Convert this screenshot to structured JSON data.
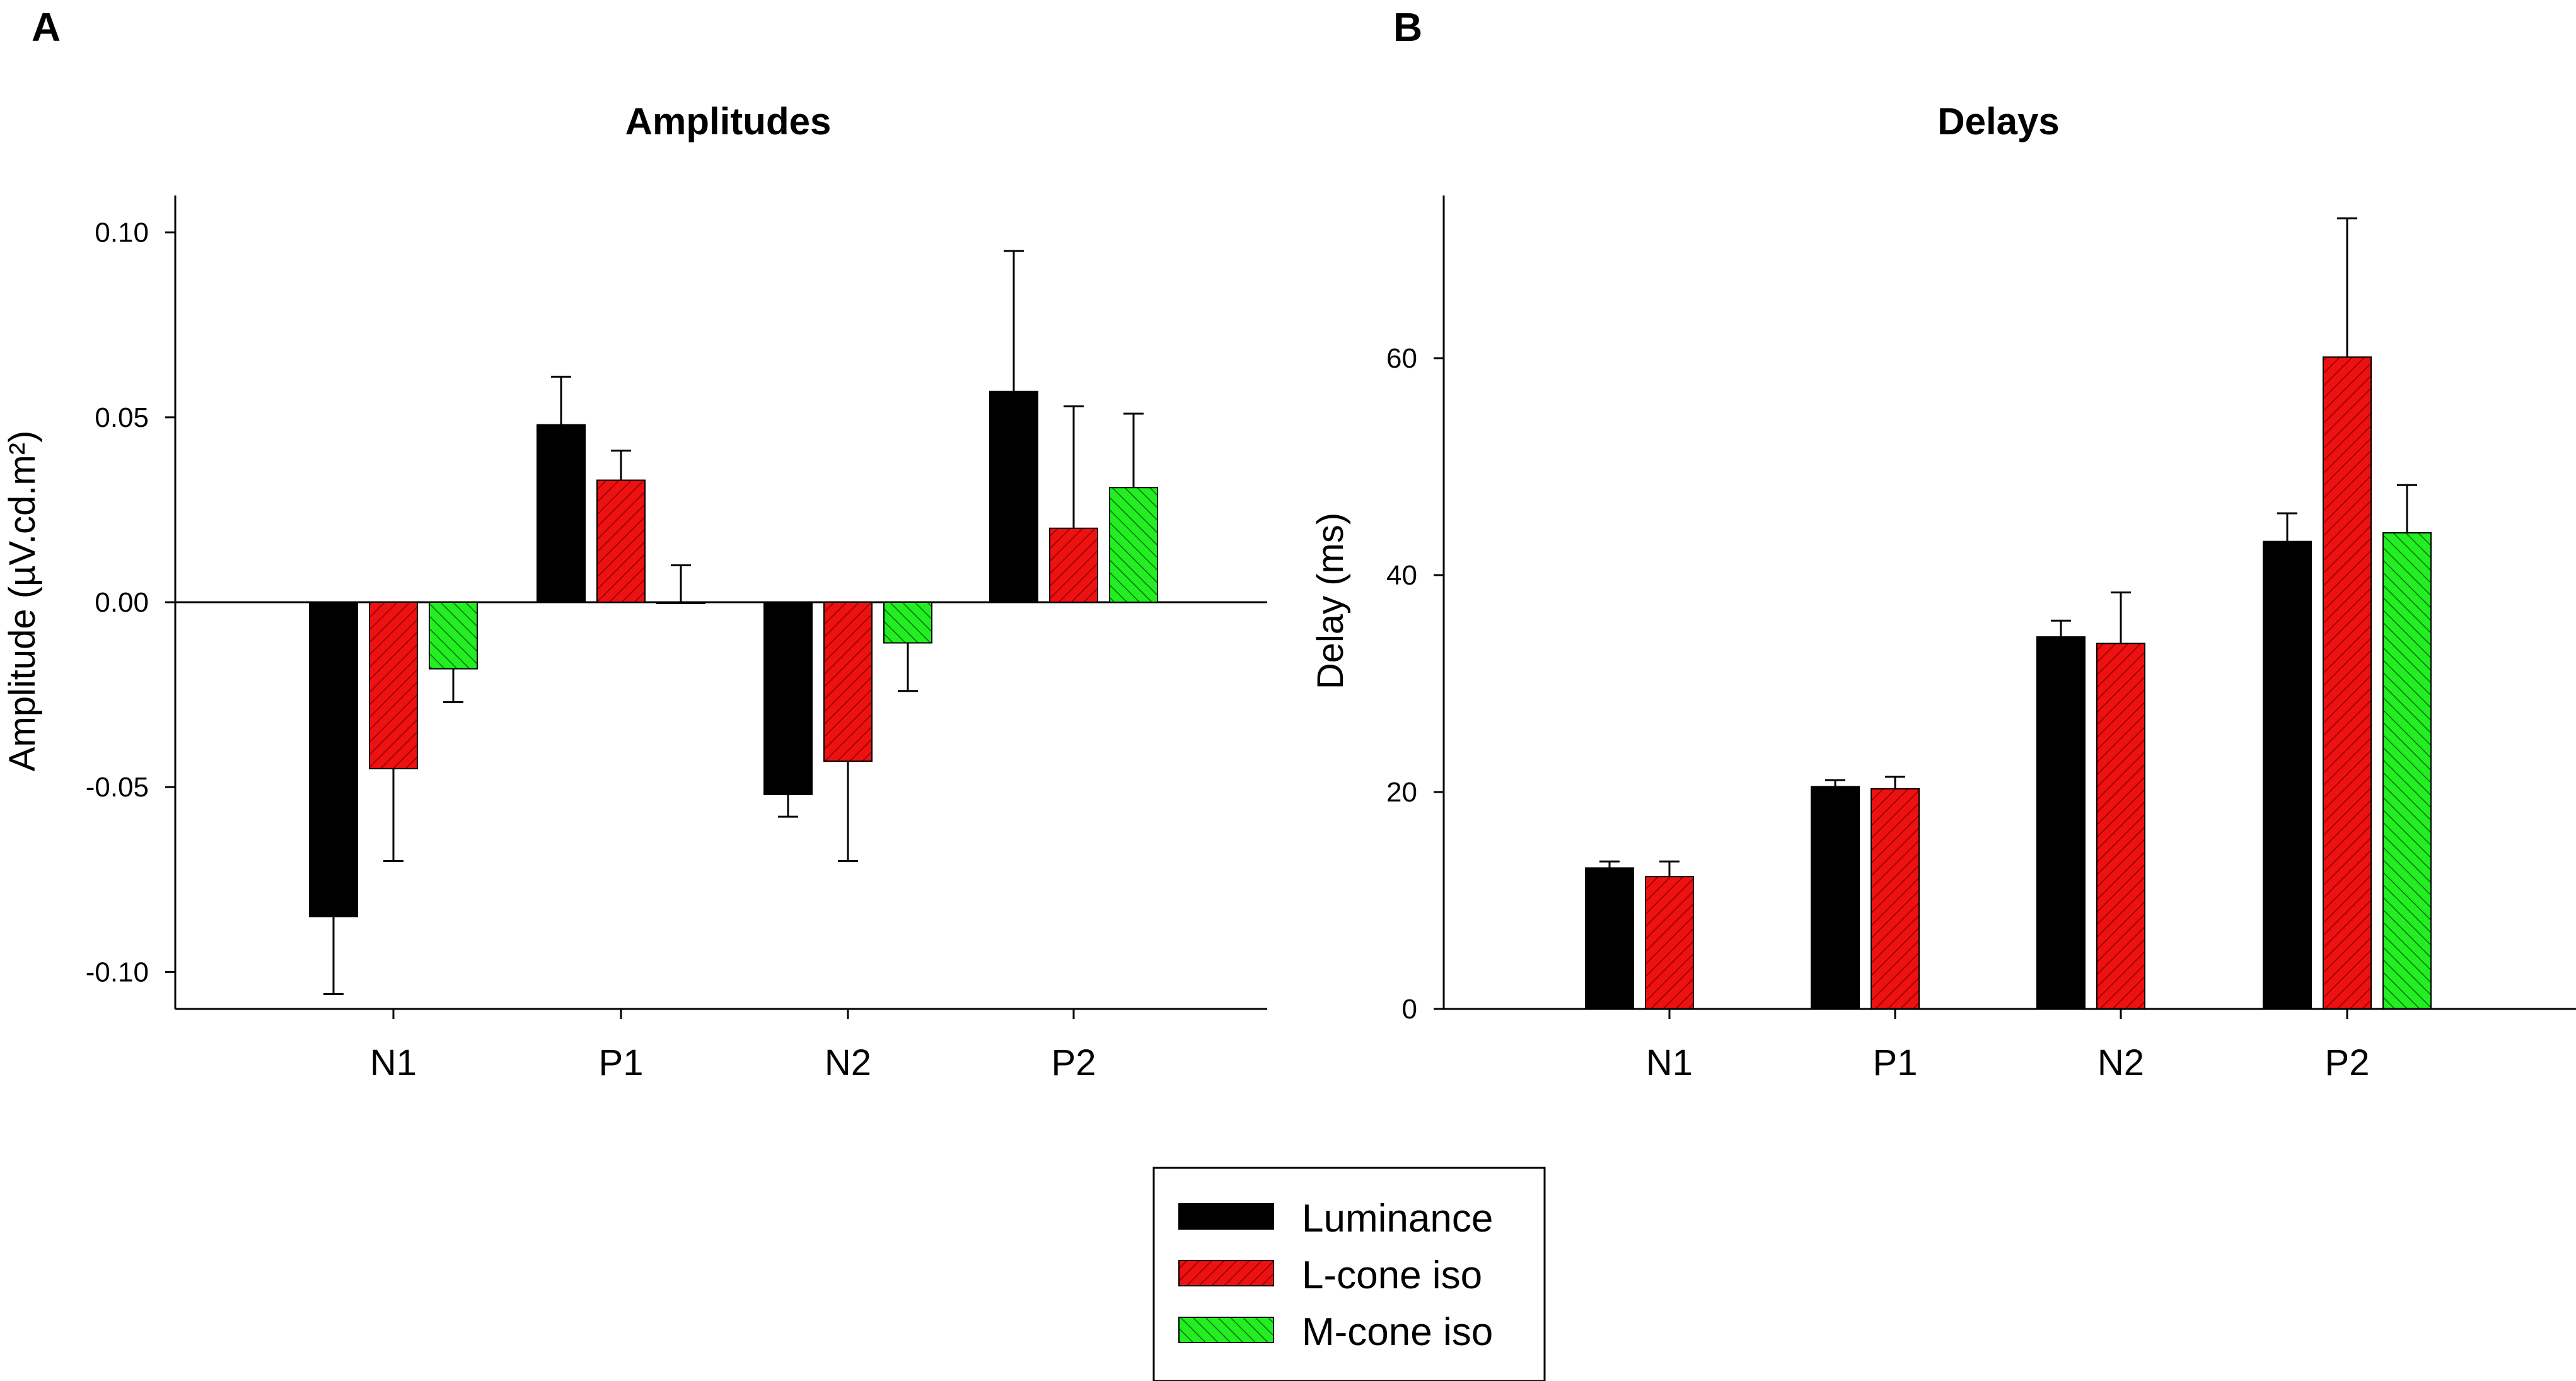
{
  "panels": [
    "A",
    "B"
  ],
  "colors": {
    "luminance": "#000000",
    "lcone": "#ee1111",
    "mcone": "#22ee22",
    "hatch_lcone": "#8b0000",
    "hatch_mcone": "#0a6a0a"
  },
  "legend": {
    "items": [
      {
        "label": "Luminance",
        "series": "luminance"
      },
      {
        "label": "L-cone iso",
        "series": "lcone"
      },
      {
        "label": "M-cone iso",
        "series": "mcone"
      }
    ]
  },
  "chart_data": [
    {
      "type": "bar",
      "title": "Amplitudes",
      "xlabel": "",
      "ylabel": "Amplitude (µV.cd.m²)",
      "categories": [
        "N1",
        "P1",
        "N2",
        "P2"
      ],
      "ylim": [
        -0.11,
        0.11
      ],
      "yticks": [
        -0.1,
        -0.05,
        0.0,
        0.05,
        0.1
      ],
      "ytick_labels": [
        "-0.10",
        "-0.05",
        "0.00",
        "0.05",
        "0.10"
      ],
      "zero_line": true,
      "series": [
        {
          "name": "Luminance",
          "key": "luminance",
          "values": [
            -0.085,
            0.048,
            -0.052,
            0.057
          ],
          "errors": [
            0.021,
            0.013,
            0.006,
            0.038
          ]
        },
        {
          "name": "L-cone iso",
          "key": "lcone",
          "values": [
            -0.045,
            0.033,
            -0.043,
            0.02
          ],
          "errors": [
            0.025,
            0.008,
            0.027,
            0.033
          ]
        },
        {
          "name": "M-cone iso",
          "key": "mcone",
          "values": [
            -0.018,
            0.0,
            -0.011,
            0.031
          ],
          "errors": [
            0.009,
            0.01,
            0.013,
            0.02
          ]
        }
      ]
    },
    {
      "type": "bar",
      "title": "Delays",
      "xlabel": "",
      "ylabel": "Delay (ms)",
      "categories": [
        "N1",
        "P1",
        "N2",
        "P2"
      ],
      "ylim": [
        0,
        75
      ],
      "yticks": [
        0,
        20,
        40,
        60
      ],
      "ytick_labels": [
        "0",
        "20",
        "40",
        "60"
      ],
      "zero_line": false,
      "series": [
        {
          "name": "Luminance",
          "key": "luminance",
          "values": [
            13.0,
            20.5,
            34.3,
            43.1
          ],
          "errors": [
            0.6,
            0.6,
            1.5,
            2.6
          ]
        },
        {
          "name": "L-cone iso",
          "key": "lcone",
          "values": [
            12.2,
            20.3,
            33.7,
            60.1
          ],
          "errors": [
            1.4,
            1.1,
            4.7,
            12.8
          ]
        },
        {
          "name": "M-cone iso",
          "key": "mcone",
          "values": [
            null,
            null,
            null,
            43.9
          ],
          "errors": [
            null,
            null,
            null,
            4.4
          ]
        }
      ]
    }
  ]
}
